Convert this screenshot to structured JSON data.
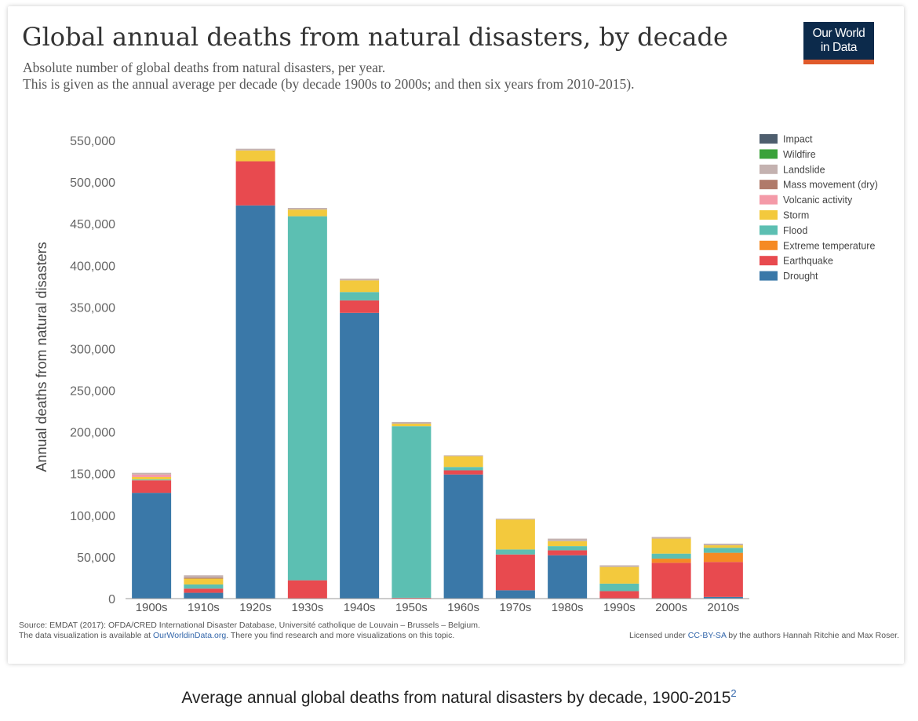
{
  "logo": {
    "line1": "Our World",
    "line2": "in Data"
  },
  "source": {
    "line1": "Source: EMDAT (2017): OFDA/CRED International Disaster Database, Université catholique de Louvain – Brussels – Belgium.",
    "line2_pre": "The data visualization is available at ",
    "line2_link": "OurWorldinData.org",
    "line2_post": ". There you find research and more visualizations on this topic."
  },
  "license": {
    "pre": "Licensed under ",
    "link": "CC-BY-SA",
    "post": " by the authors Hannah Ritchie and Max Roser."
  },
  "caption": {
    "text": "Average annual global deaths from natural disasters by decade, 1900-2015",
    "ref": "2"
  },
  "chart_data": {
    "type": "bar",
    "stacked": true,
    "title": "Global annual deaths from natural disasters, by decade",
    "subtitle": [
      "Absolute number of global deaths from natural disasters, per year.",
      "This is given as the annual average per decade (by decade 1900s to 2000s; and then six years from 2010-2015)."
    ],
    "xlabel": "",
    "ylabel": "Annual deaths from natural disasters",
    "ylim": [
      0,
      550000
    ],
    "yticks": [
      0,
      50000,
      100000,
      150000,
      200000,
      250000,
      300000,
      350000,
      400000,
      450000,
      500000,
      550000
    ],
    "ytick_labels": [
      "0",
      "50,000",
      "100,000",
      "150,000",
      "200,000",
      "250,000",
      "300,000",
      "350,000",
      "400,000",
      "450,000",
      "500,000",
      "550,000"
    ],
    "categories": [
      "1900s",
      "1910s",
      "1920s",
      "1930s",
      "1940s",
      "1950s",
      "1960s",
      "1970s",
      "1980s",
      "1990s",
      "2000s",
      "2010s"
    ],
    "legend_position": "top-right",
    "grid": false,
    "series": [
      {
        "name": "Drought",
        "color": "#3a78a8",
        "values": [
          127000,
          7000,
          472000,
          0,
          343000,
          0,
          149000,
          10000,
          52000,
          0,
          0,
          2000
        ]
      },
      {
        "name": "Earthquake",
        "color": "#e84a4f",
        "values": [
          15000,
          5000,
          53000,
          22000,
          15000,
          1000,
          5000,
          43000,
          6000,
          9000,
          43000,
          42000
        ]
      },
      {
        "name": "Extreme temperature",
        "color": "#f58a24",
        "values": [
          0,
          0,
          0,
          0,
          0,
          0,
          0,
          0,
          0,
          0,
          5000,
          11000
        ]
      },
      {
        "name": "Flood",
        "color": "#5cbfb2",
        "values": [
          1000,
          5000,
          0,
          437000,
          10000,
          206000,
          4000,
          6000,
          5000,
          9000,
          6000,
          6000
        ]
      },
      {
        "name": "Storm",
        "color": "#f3c93d",
        "values": [
          3000,
          7000,
          13000,
          8000,
          14000,
          3000,
          13000,
          36000,
          6000,
          20000,
          18000,
          3000
        ]
      },
      {
        "name": "Volcanic activity",
        "color": "#f49aa8",
        "values": [
          3000,
          0,
          0,
          0,
          0,
          0,
          0,
          0,
          0,
          0,
          0,
          0
        ]
      },
      {
        "name": "Mass movement (dry)",
        "color": "#b07a6a",
        "values": [
          0,
          1000,
          0,
          0,
          0,
          0,
          0,
          0,
          0,
          0,
          0,
          0
        ]
      },
      {
        "name": "Landslide",
        "color": "#c4b2b0",
        "values": [
          2000,
          3000,
          2000,
          2000,
          2000,
          2000,
          1000,
          1000,
          3000,
          2000,
          2000,
          2000
        ]
      },
      {
        "name": "Wildfire",
        "color": "#3aa23a",
        "values": [
          0,
          0,
          0,
          0,
          0,
          0,
          0,
          0,
          0,
          0,
          0,
          0
        ]
      },
      {
        "name": "Impact",
        "color": "#4e5e6e",
        "values": [
          0,
          0,
          0,
          0,
          0,
          0,
          0,
          0,
          0,
          0,
          0,
          0
        ]
      }
    ],
    "legend_order": [
      "Impact",
      "Wildfire",
      "Landslide",
      "Mass movement (dry)",
      "Volcanic activity",
      "Storm",
      "Flood",
      "Extreme temperature",
      "Earthquake",
      "Drought"
    ]
  }
}
